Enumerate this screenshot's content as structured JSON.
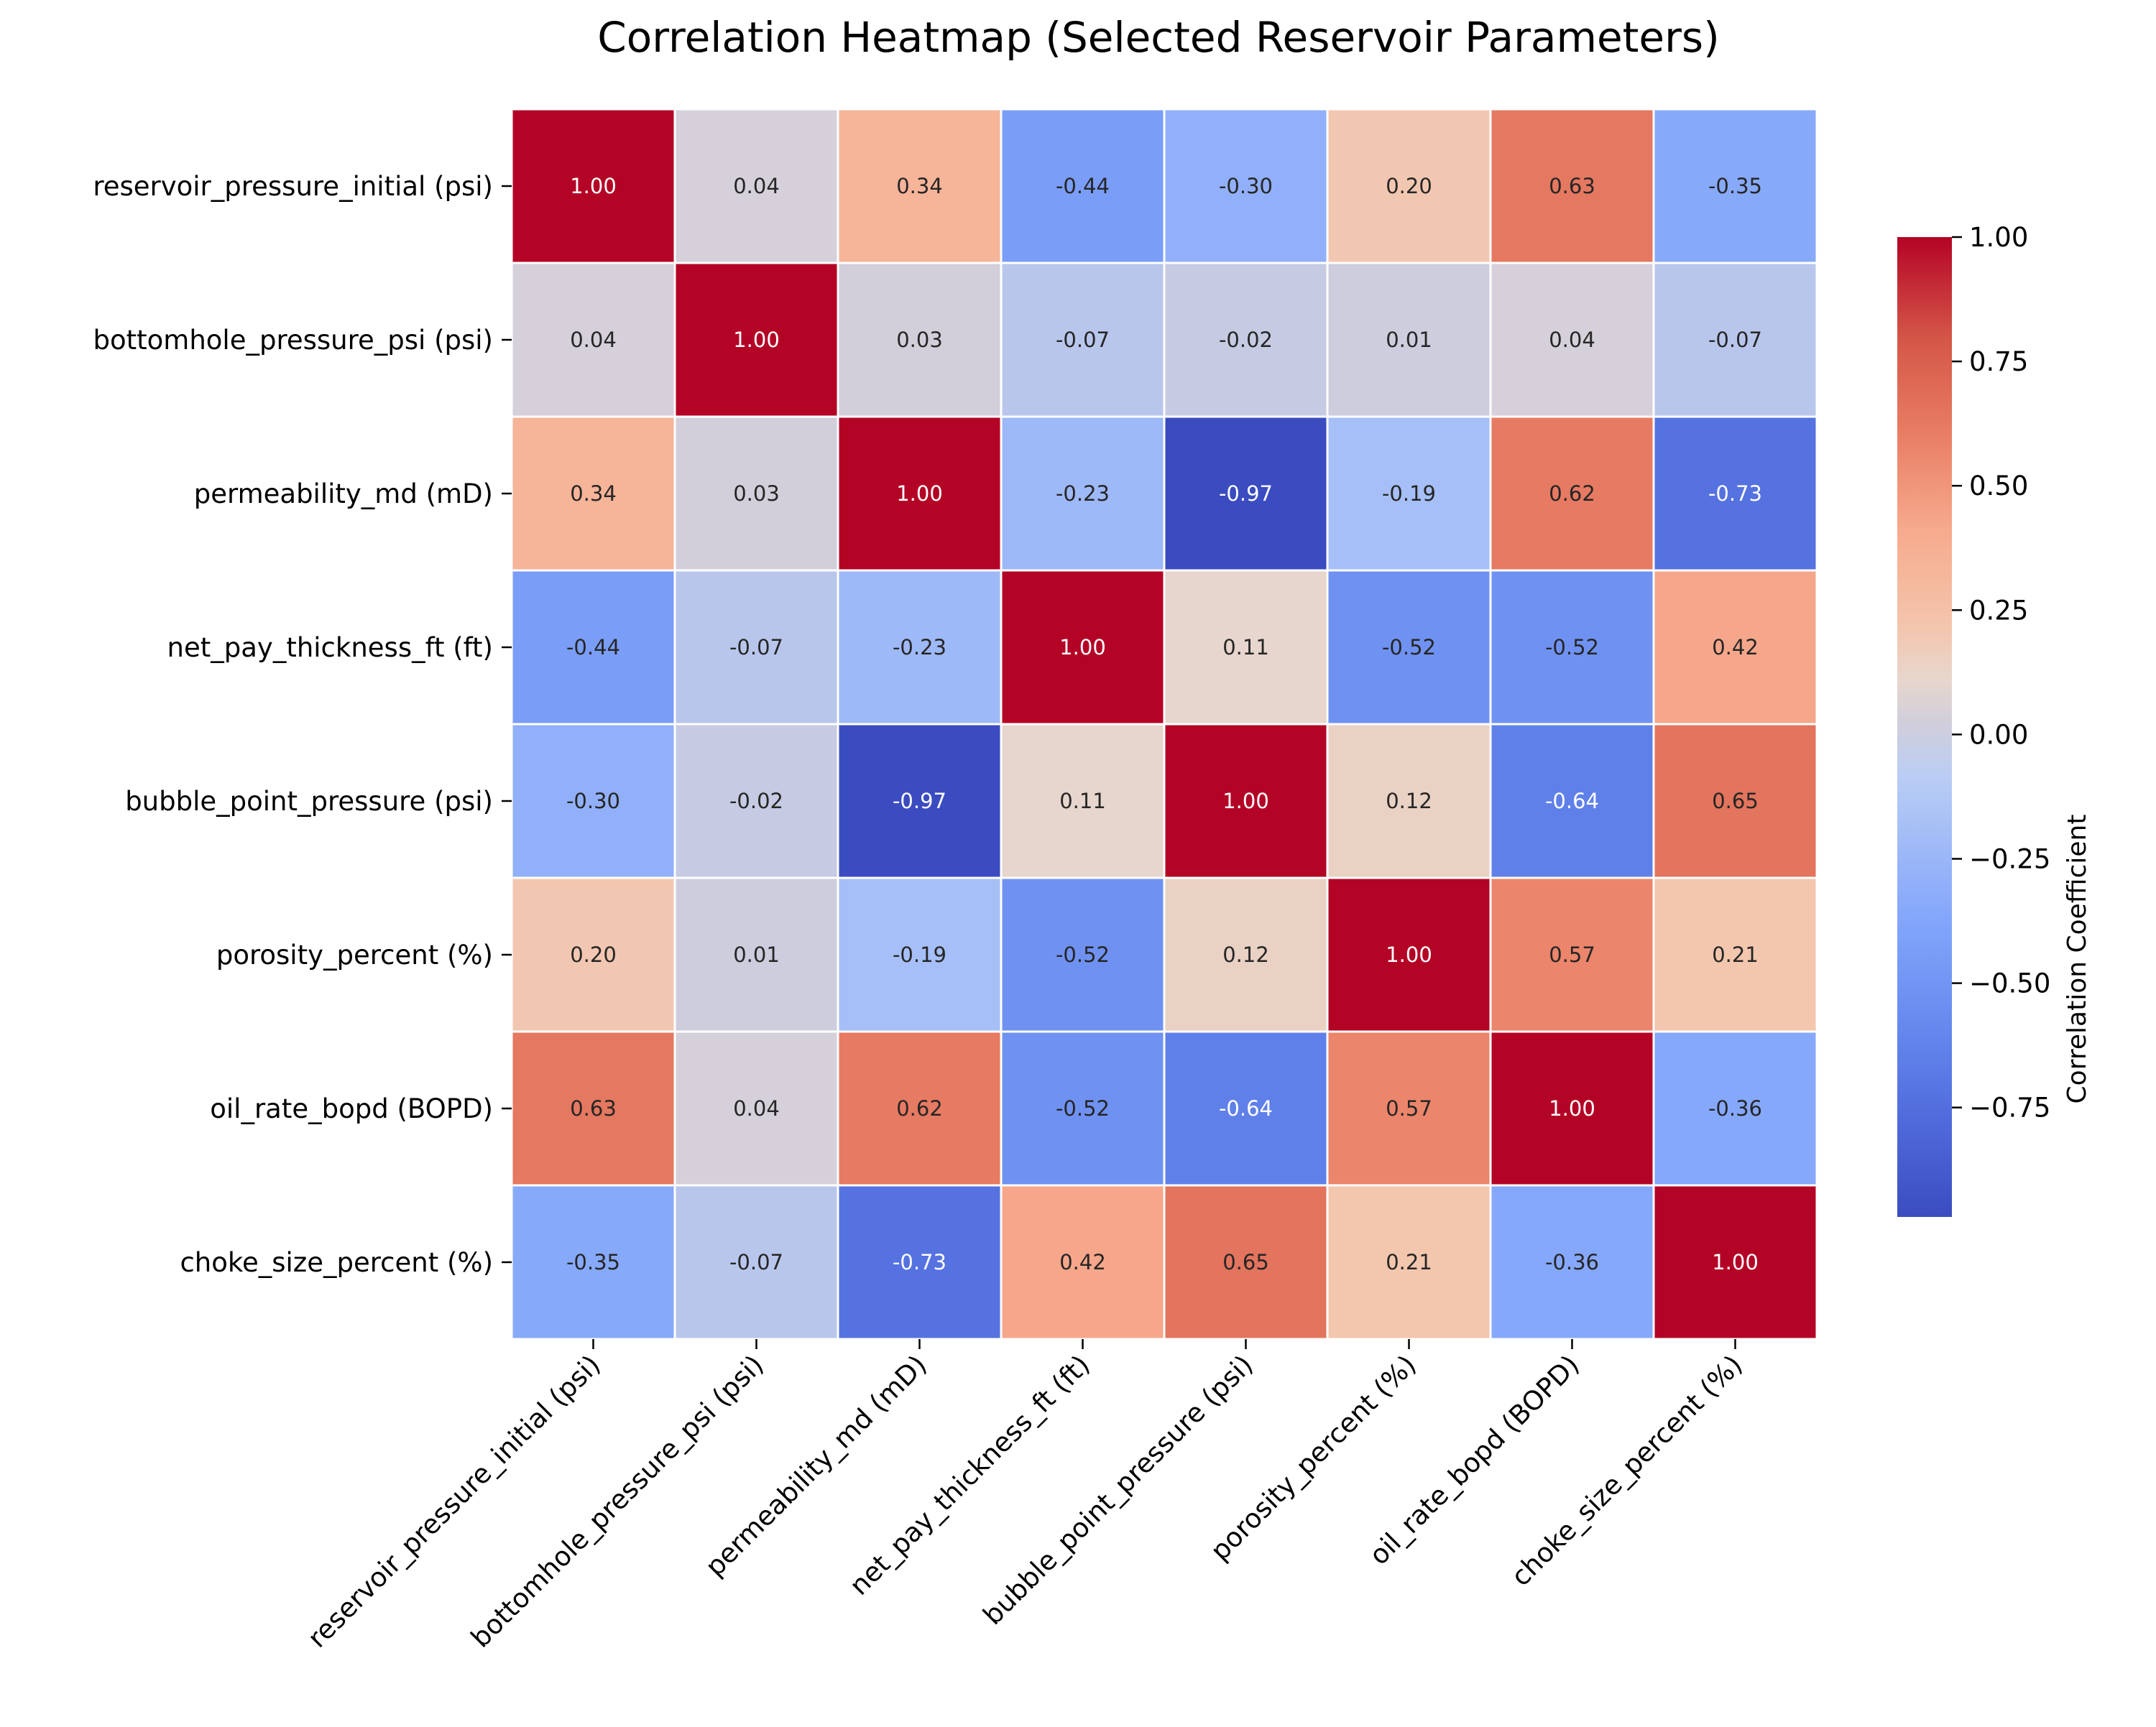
{
  "chart_data": {
    "type": "heatmap",
    "title": "Correlation Heatmap (Selected Reservoir Parameters)",
    "xlabel": "",
    "ylabel": "",
    "row_labels": [
      "reservoir_pressure_initial (psi)",
      "bottomhole_pressure_psi (psi)",
      "permeability_md (mD)",
      "net_pay_thickness_ft (ft)",
      "bubble_point_pressure (psi)",
      "porosity_percent (%)",
      "oil_rate_bopd (BOPD)",
      "choke_size_percent (%)"
    ],
    "col_labels": [
      "reservoir_pressure_initial (psi)",
      "bottomhole_pressure_psi (psi)",
      "permeability_md (mD)",
      "net_pay_thickness_ft (ft)",
      "bubble_point_pressure (psi)",
      "porosity_percent (%)",
      "oil_rate_bopd (BOPD)",
      "choke_size_percent (%)"
    ],
    "values": [
      [
        1.0,
        0.04,
        0.34,
        -0.44,
        -0.3,
        0.2,
        0.63,
        -0.35
      ],
      [
        0.04,
        1.0,
        0.03,
        -0.07,
        -0.02,
        0.01,
        0.04,
        -0.07
      ],
      [
        0.34,
        0.03,
        1.0,
        -0.23,
        -0.97,
        -0.19,
        0.62,
        -0.73
      ],
      [
        -0.44,
        -0.07,
        -0.23,
        1.0,
        0.11,
        -0.52,
        -0.52,
        0.42
      ],
      [
        -0.3,
        -0.02,
        -0.97,
        0.11,
        1.0,
        0.12,
        -0.64,
        0.65
      ],
      [
        0.2,
        0.01,
        -0.19,
        -0.52,
        0.12,
        1.0,
        0.57,
        0.21
      ],
      [
        0.63,
        0.04,
        0.62,
        -0.52,
        -0.64,
        0.57,
        1.0,
        -0.36
      ],
      [
        -0.35,
        -0.07,
        -0.73,
        0.42,
        0.65,
        0.21,
        -0.36,
        1.0
      ]
    ],
    "value_format": "2 decimals",
    "colormap": "coolwarm",
    "colorbar": {
      "label": "Correlation Coefficient",
      "range": [
        -0.97,
        1.0
      ],
      "ticks": [
        1.0,
        0.75,
        0.5,
        0.25,
        0.0,
        -0.25,
        -0.5,
        -0.75
      ],
      "tick_labels": [
        "1.00",
        "0.75",
        "0.50",
        "0.25",
        "0.00",
        "−0.25",
        "−0.50",
        "−0.75"
      ]
    },
    "grid": false,
    "colors": {
      "cell_border": "#ffffff",
      "text_dark": "#262626",
      "text_light": "#ffffff"
    }
  }
}
